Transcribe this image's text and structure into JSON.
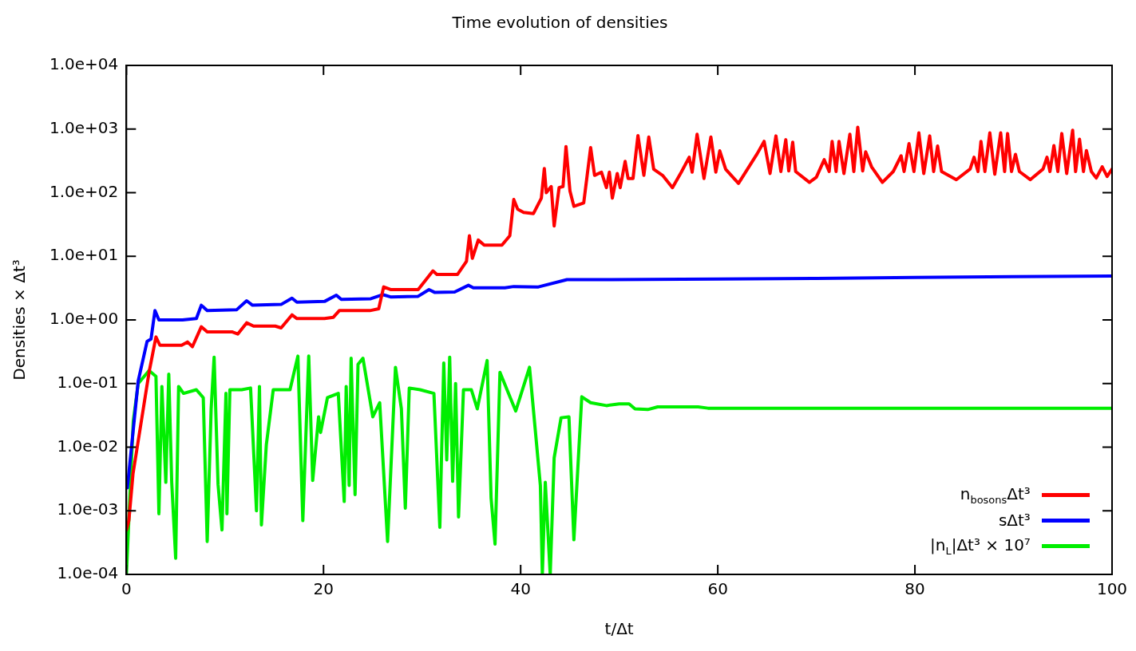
{
  "chart_data": {
    "type": "line",
    "title": "Time evolution of densities",
    "xlabel": "t/Δt",
    "ylabel": "Densities × Δt³",
    "log": "y",
    "grid": false,
    "legend": "bottom right",
    "marker": "none",
    "line_style": "solid",
    "xlim": [
      0,
      100
    ],
    "xticks": [
      0,
      20,
      40,
      60,
      80,
      100
    ],
    "ylim": [
      0.0001,
      10000
    ],
    "yticks": [
      {
        "value": 0.0001,
        "label": "1.0e-04"
      },
      {
        "value": 0.001,
        "label": "1.0e-03"
      },
      {
        "value": 0.01,
        "label": "1.0e-02"
      },
      {
        "value": 0.1,
        "label": "1.0e-01"
      },
      {
        "value": 1,
        "label": "1.0e+00"
      },
      {
        "value": 10,
        "label": "1.0e+01"
      },
      {
        "value": 100,
        "label": "1.0e+02"
      },
      {
        "value": 1000,
        "label": "1.0e+03"
      },
      {
        "value": 10000,
        "label": "1.0e+04"
      }
    ],
    "series": [
      {
        "name": "n$_{bosons}$Δt³",
        "color": "#ff0000",
        "x": [
          0,
          0.25,
          0.67,
          2.3,
          3.0,
          3.4,
          5.6,
          6.2,
          6.7,
          7.6,
          8.2,
          10.7,
          11.3,
          12.2,
          12.9,
          15.1,
          15.7,
          16.8,
          17.3,
          20.1,
          21.0,
          21.6,
          24.7,
          25.6,
          26.1,
          26.8,
          29.6,
          30.4,
          31.1,
          31.5,
          33.6,
          34.5,
          34.8,
          35.1,
          35.7,
          36.3,
          38.1,
          38.9,
          39.3,
          39.7,
          40.3,
          41.3,
          42.1,
          42.4,
          42.6,
          43.1,
          43.4,
          43.9,
          44.3,
          44.6,
          45.0,
          45.4,
          46.4,
          47.1,
          47.5,
          48.2,
          48.7,
          49.0,
          49.3,
          49.8,
          50.1,
          50.6,
          50.9,
          51.4,
          51.9,
          52.5,
          53.0,
          53.5,
          54.4,
          55.4,
          56.3,
          57.1,
          57.4,
          57.9,
          58.6,
          59.3,
          59.8,
          60.2,
          60.8,
          62.1,
          64.0,
          64.7,
          65.3,
          65.9,
          66.4,
          66.9,
          67.2,
          67.6,
          67.9,
          69.3,
          70.0,
          70.8,
          71.3,
          71.6,
          72.0,
          72.3,
          72.8,
          73.4,
          73.8,
          74.2,
          74.7,
          75.0,
          75.6,
          76.7,
          77.8,
          78.6,
          78.9,
          79.4,
          79.9,
          80.4,
          80.9,
          81.5,
          81.9,
          82.3,
          82.7,
          84.2,
          85.6,
          86.0,
          86.4,
          86.7,
          87.1,
          87.6,
          88.1,
          88.7,
          89.1,
          89.4,
          89.8,
          90.2,
          90.6,
          91.7,
          93.0,
          93.4,
          93.7,
          94.1,
          94.5,
          94.9,
          95.4,
          96.0,
          96.3,
          96.7,
          97.1,
          97.4,
          97.9,
          98.4,
          99.0,
          99.5,
          100
        ],
        "values": [
          0.0005,
          0.0007,
          0.0038,
          0.15,
          0.54,
          0.4,
          0.4,
          0.45,
          0.38,
          0.78,
          0.65,
          0.65,
          0.6,
          0.9,
          0.8,
          0.8,
          0.75,
          1.2,
          1.05,
          1.05,
          1.1,
          1.4,
          1.4,
          1.5,
          3.3,
          3.0,
          3.0,
          4.3,
          5.9,
          5.2,
          5.2,
          8.3,
          21,
          9.3,
          18,
          15,
          15,
          21,
          78,
          55,
          49,
          47,
          82,
          240,
          100,
          125,
          30,
          120,
          125,
          530,
          107,
          61,
          69,
          510,
          187,
          210,
          120,
          210,
          82,
          200,
          120,
          310,
          167,
          167,
          790,
          187,
          750,
          233,
          187,
          120,
          210,
          360,
          210,
          830,
          167,
          750,
          210,
          455,
          233,
          140,
          410,
          640,
          200,
          780,
          215,
          680,
          220,
          620,
          215,
          145,
          175,
          330,
          215,
          640,
          215,
          640,
          200,
          830,
          215,
          1070,
          220,
          440,
          255,
          145,
          215,
          380,
          215,
          590,
          215,
          870,
          200,
          780,
          215,
          540,
          215,
          160,
          235,
          360,
          215,
          640,
          215,
          870,
          195,
          870,
          215,
          850,
          215,
          400,
          215,
          160,
          235,
          360,
          215,
          550,
          215,
          850,
          200,
          960,
          215,
          690,
          215,
          460,
          215,
          170,
          255,
          180,
          235
        ]
      },
      {
        "name": "sΔt³",
        "color": "#0000ff",
        "x": [
          0.1,
          1.2,
          2.1,
          2.5,
          2.9,
          3.3,
          5.7,
          7.1,
          7.6,
          8.2,
          11.2,
          12.2,
          12.8,
          15.7,
          16.8,
          17.3,
          20.1,
          21.3,
          21.8,
          24.8,
          26.0,
          26.8,
          29.6,
          30.7,
          31.3,
          33.3,
          34.7,
          35.2,
          38.4,
          39.3,
          41.8,
          44.7,
          49.2,
          60,
          70,
          80,
          90,
          100
        ],
        "values": [
          0.0023,
          0.11,
          0.46,
          0.5,
          1.4,
          1.0,
          1.0,
          1.05,
          1.7,
          1.4,
          1.45,
          2.0,
          1.7,
          1.75,
          2.2,
          1.9,
          1.95,
          2.45,
          2.1,
          2.15,
          2.5,
          2.3,
          2.35,
          3.0,
          2.7,
          2.75,
          3.5,
          3.2,
          3.2,
          3.35,
          3.3,
          4.3,
          4.3,
          4.4,
          4.5,
          4.65,
          4.8,
          4.9
        ]
      },
      {
        "name": "|n$_{L}$|Δt³ × 10⁷",
        "color": "#00ee00",
        "x": [
          0,
          0.7,
          1.2,
          2.3,
          3.0,
          3.3,
          3.6,
          4.0,
          4.3,
          4.6,
          5.0,
          5.3,
          5.8,
          7.1,
          7.8,
          8.2,
          8.6,
          8.9,
          9.3,
          9.7,
          10.1,
          10.2,
          10.5,
          11.7,
          12.6,
          13.2,
          13.5,
          13.7,
          14.2,
          14.9,
          16.6,
          17.4,
          17.9,
          18.5,
          18.9,
          19.5,
          19.7,
          20.4,
          21.5,
          22.1,
          22.3,
          22.6,
          22.8,
          23.2,
          23.5,
          24.0,
          25.0,
          25.7,
          26.5,
          27.3,
          27.9,
          28.3,
          28.7,
          29.8,
          31.2,
          31.8,
          32.2,
          32.5,
          32.8,
          33.1,
          33.4,
          33.7,
          34.2,
          35.0,
          35.6,
          36.6,
          37.0,
          37.4,
          37.9,
          39.5,
          40.9,
          42.0,
          42.2,
          42.5,
          43.0,
          43.4,
          44.1,
          44.9,
          45.4,
          46.2,
          47.1,
          48.7,
          50.0,
          51.0,
          51.6,
          52.9,
          53.9,
          58.0,
          59.0,
          70,
          80,
          90,
          100
        ],
        "values": [
          0.0001,
          0.026,
          0.1,
          0.16,
          0.13,
          0.0009,
          0.09,
          0.0028,
          0.14,
          0.0028,
          0.00018,
          0.09,
          0.07,
          0.08,
          0.06,
          0.00033,
          0.04,
          0.26,
          0.0026,
          0.0005,
          0.07,
          0.0009,
          0.08,
          0.08,
          0.085,
          0.001,
          0.09,
          0.0006,
          0.011,
          0.08,
          0.08,
          0.27,
          0.0007,
          0.27,
          0.003,
          0.03,
          0.017,
          0.06,
          0.07,
          0.0014,
          0.09,
          0.0025,
          0.25,
          0.0018,
          0.2,
          0.25,
          0.03,
          0.05,
          0.00033,
          0.18,
          0.04,
          0.0011,
          0.085,
          0.08,
          0.07,
          0.00055,
          0.21,
          0.0063,
          0.26,
          0.0029,
          0.1,
          0.0008,
          0.08,
          0.08,
          0.04,
          0.23,
          0.0016,
          0.0003,
          0.15,
          0.037,
          0.18,
          0.0025,
          0.0001,
          0.0028,
          0.0001,
          0.0068,
          0.029,
          0.03,
          0.00035,
          0.062,
          0.05,
          0.045,
          0.048,
          0.048,
          0.04,
          0.039,
          0.043,
          0.043,
          0.041,
          0.041,
          0.041,
          0.041,
          0.041
        ]
      }
    ]
  }
}
